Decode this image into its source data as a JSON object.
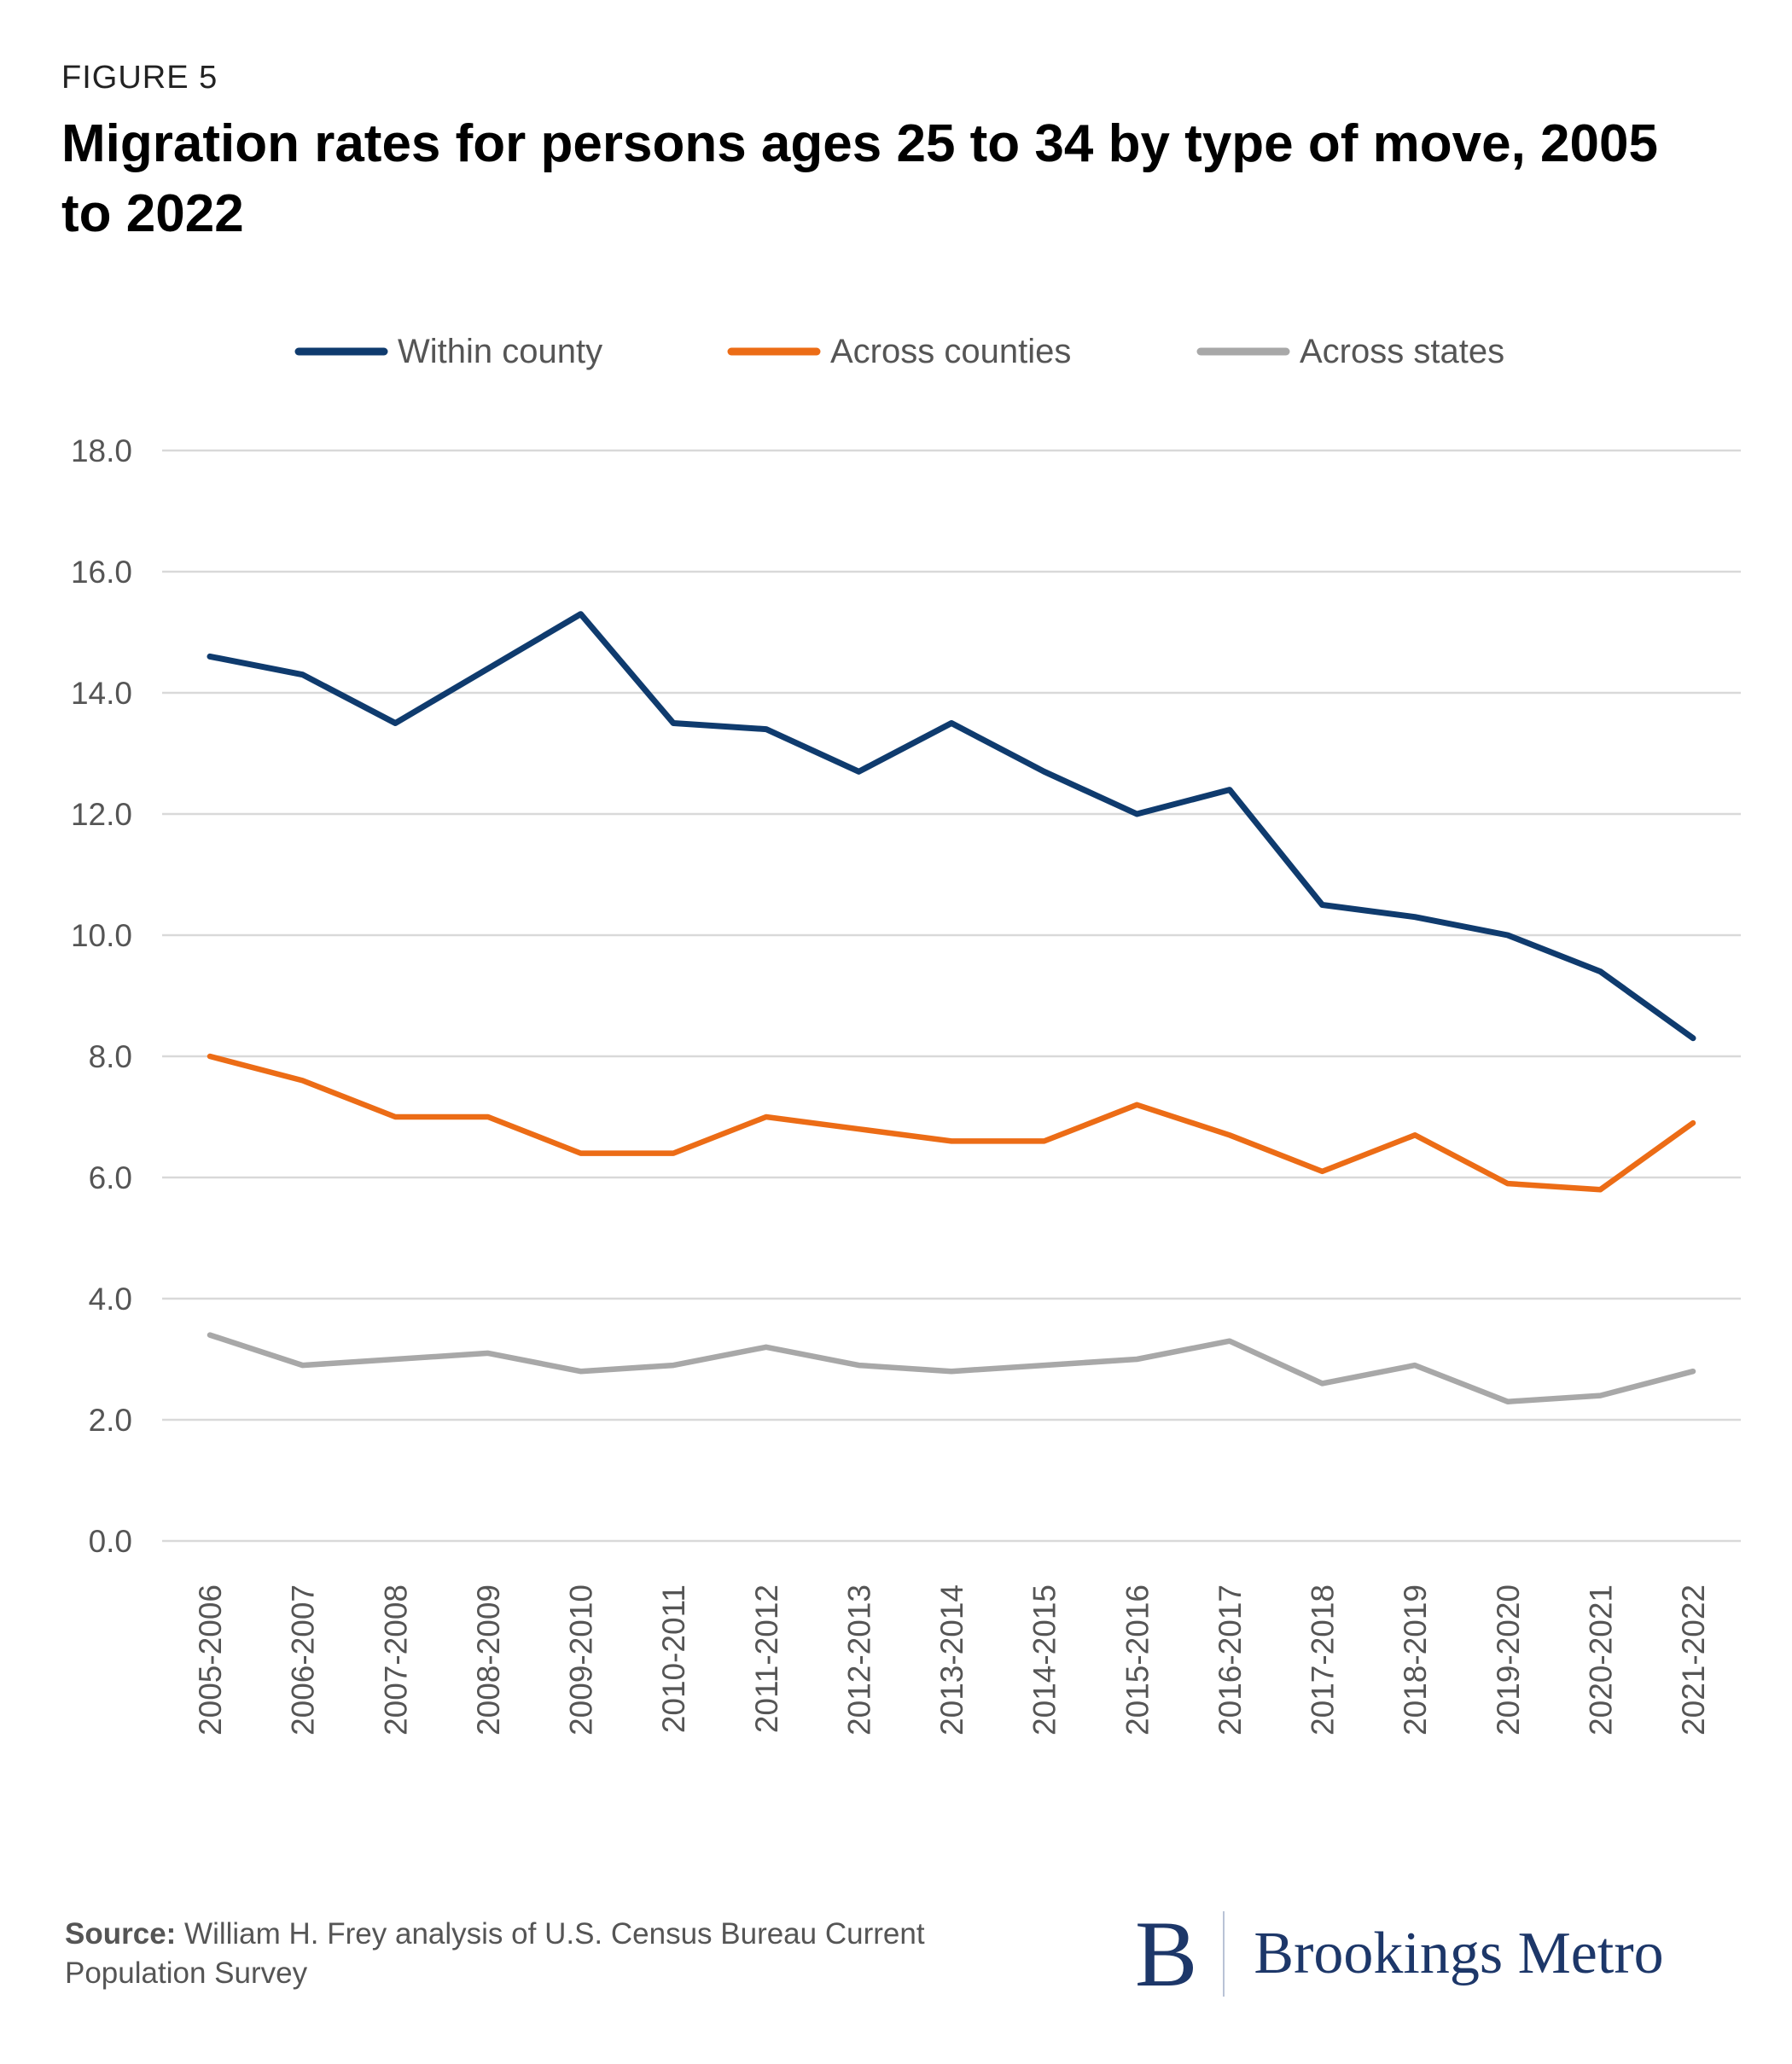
{
  "figure_label": "FIGURE 5",
  "source_label": "Source:",
  "source_text": "William H. Frey analysis of U.S. Census Bureau Current Population Survey",
  "logo": {
    "mark": "B",
    "name": "Brookings Metro"
  },
  "colors": {
    "within": "#0f3b6e",
    "counties": "#ec6c16",
    "states": "#a8a8a8",
    "grid": "#d9d9d9",
    "text": "#555555"
  },
  "chart_data": {
    "type": "line",
    "title": "Migration rates for persons ages 25 to 34 by type of move, 2005 to 2022",
    "xlabel": "",
    "ylabel": "",
    "ylim": [
      0,
      18
    ],
    "yticks": [
      "0.0",
      "2.0",
      "4.0",
      "6.0",
      "8.0",
      "10.0",
      "12.0",
      "14.0",
      "16.0",
      "18.0"
    ],
    "grid": true,
    "legend_position": "top",
    "categories": [
      "2005-2006",
      "2006-2007",
      "2007-2008",
      "2008-2009",
      "2009-2010",
      "2010-2011",
      "2011-2012",
      "2012-2013",
      "2013-2014",
      "2014-2015",
      "2015-2016",
      "2016-2017",
      "2017-2018",
      "2018-2019",
      "2019-2020",
      "2020-2021",
      "2021-2022"
    ],
    "series": [
      {
        "name": "Within county",
        "color": "#0f3b6e",
        "values": [
          14.6,
          14.3,
          13.5,
          14.4,
          15.3,
          13.5,
          13.4,
          12.7,
          13.5,
          12.7,
          12.0,
          12.4,
          10.5,
          10.3,
          10.0,
          9.4,
          8.3
        ]
      },
      {
        "name": "Across counties",
        "color": "#ec6c16",
        "values": [
          8.0,
          7.6,
          7.0,
          7.0,
          6.4,
          6.4,
          7.0,
          6.8,
          6.6,
          6.6,
          7.2,
          6.7,
          6.1,
          6.7,
          5.9,
          5.8,
          6.9
        ]
      },
      {
        "name": "Across states",
        "color": "#a8a8a8",
        "values": [
          3.4,
          2.9,
          3.0,
          3.1,
          2.8,
          2.9,
          3.2,
          2.9,
          2.8,
          2.9,
          3.0,
          3.3,
          2.6,
          2.9,
          2.3,
          2.4,
          2.8
        ]
      }
    ]
  }
}
